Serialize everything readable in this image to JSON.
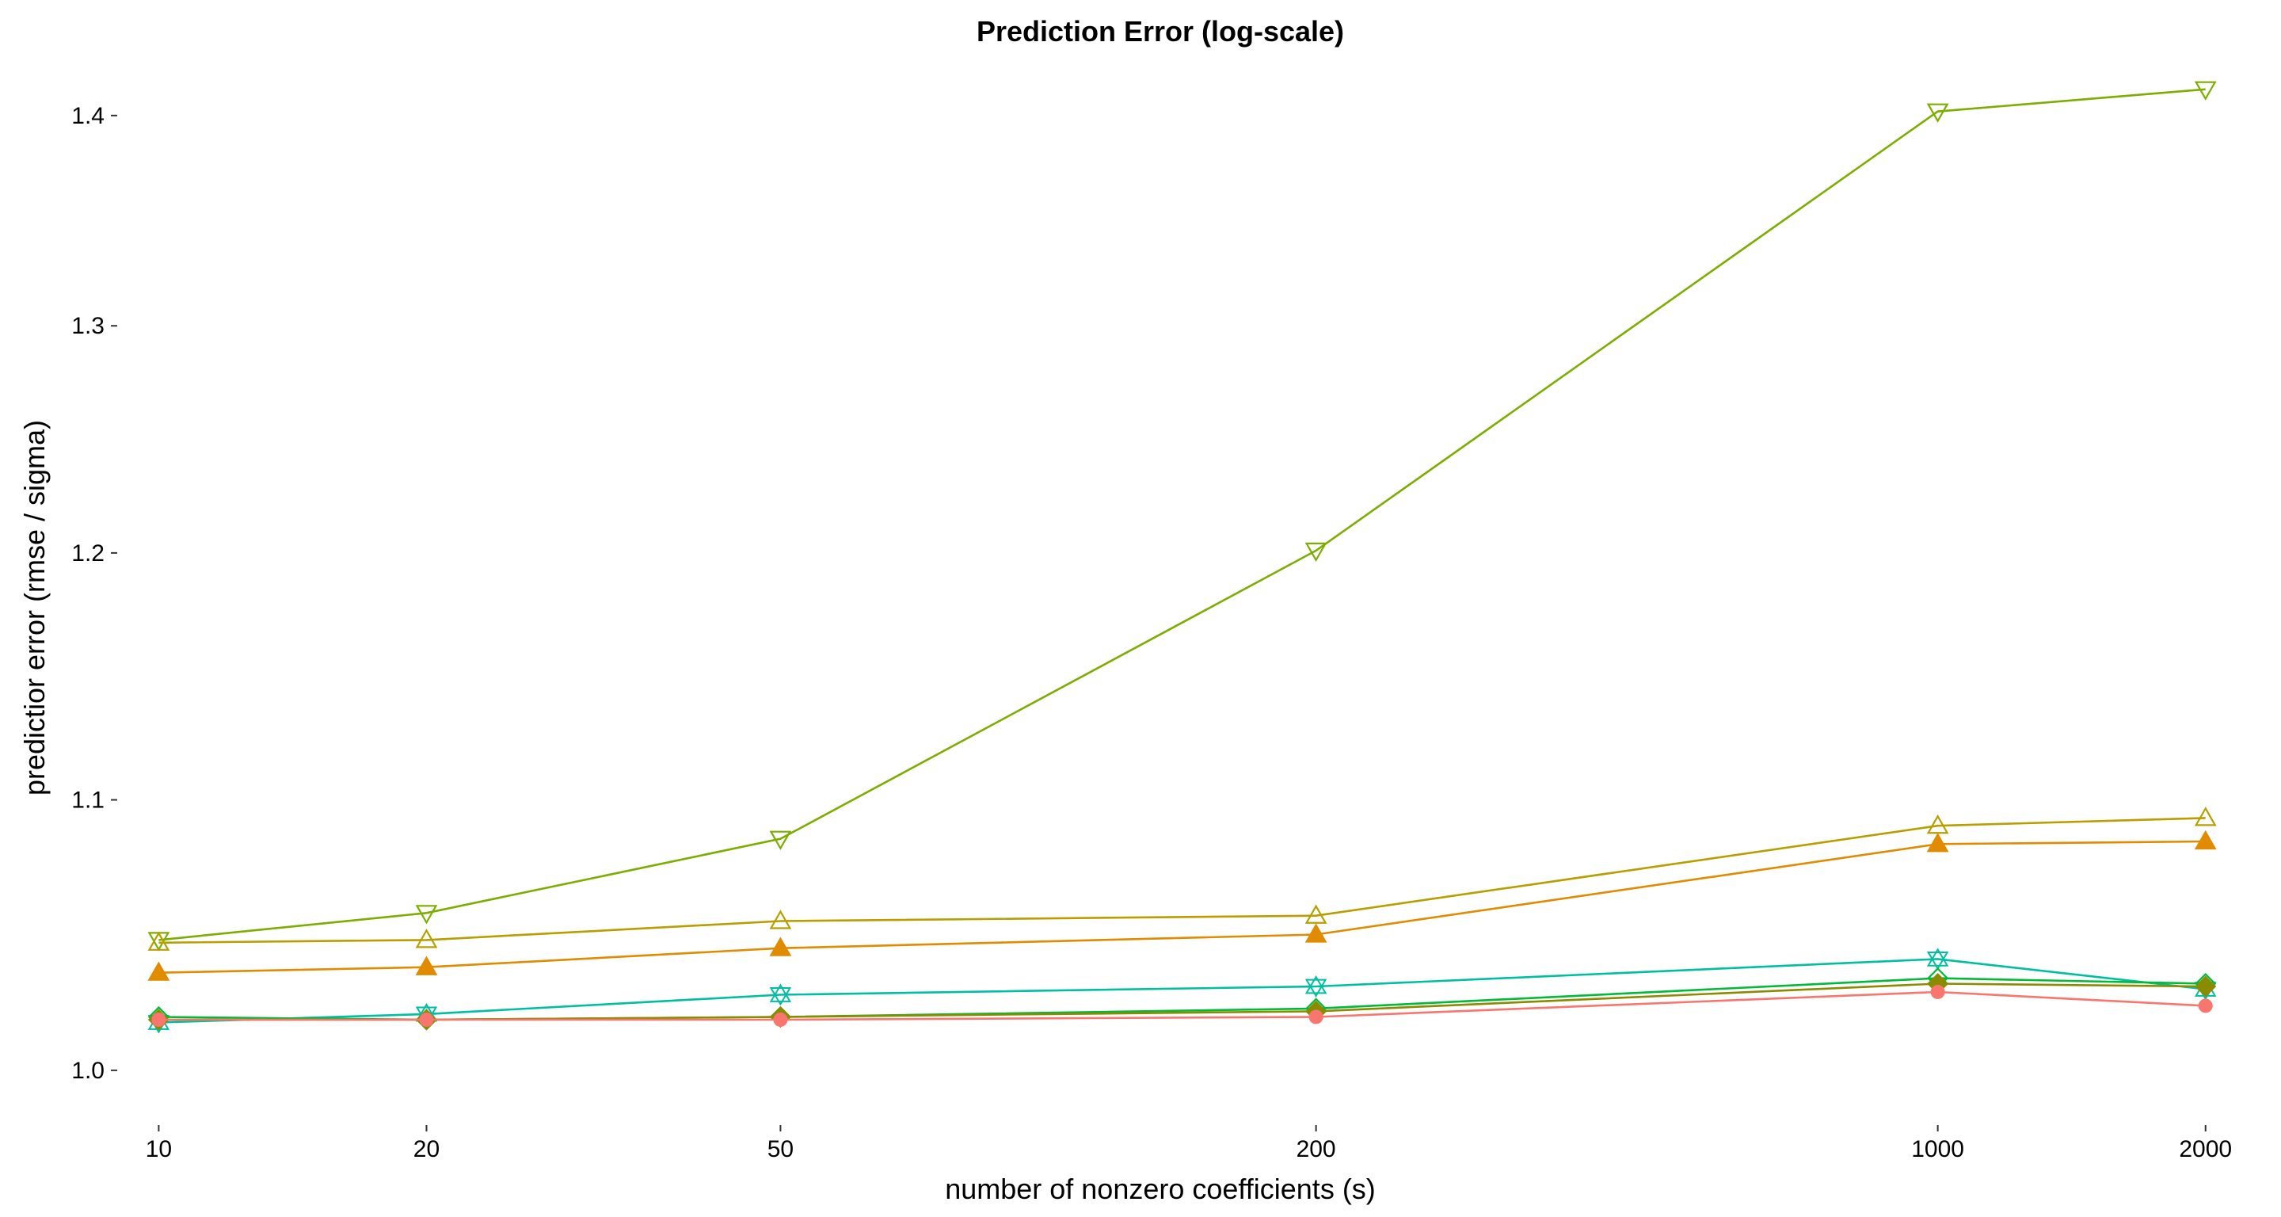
{
  "chart_data": {
    "type": "line",
    "title": "Prediction Error (log-scale)",
    "xlabel": "number of nonzero coefficients (s)",
    "ylabel": "predictior error (rmse / sigma)",
    "x_scale": "log",
    "y_scale": "log",
    "x": [
      10,
      20,
      50,
      200,
      1000,
      2000
    ],
    "x_tick_labels": [
      "10",
      "20",
      "50",
      "200",
      "1000",
      "2000"
    ],
    "y_ticks": [
      1.0,
      1.1,
      1.2,
      1.3,
      1.4
    ],
    "y_tick_labels": [
      "1.0",
      "1.1",
      "1.2",
      "1.3",
      "1.4"
    ],
    "ylim": [
      0.985,
      1.42
    ],
    "xlim": [
      9.3,
      2150
    ],
    "grid": false,
    "legend": "none",
    "series": [
      {
        "color": "#7CAE00",
        "marker": "triangle-down-open",
        "values": [
          1.047,
          1.057,
          1.085,
          1.201,
          1.402,
          1.413
        ]
      },
      {
        "color": "#B79F00",
        "marker": "triangle-up-open",
        "values": [
          1.046,
          1.047,
          1.054,
          1.056,
          1.09,
          1.093
        ]
      },
      {
        "color": "#E08B00",
        "marker": "triangle-up-filled",
        "values": [
          1.035,
          1.037,
          1.044,
          1.049,
          1.083,
          1.084
        ]
      },
      {
        "color": "#00BFA0",
        "marker": "star-of-david",
        "values": [
          1.017,
          1.02,
          1.027,
          1.03,
          1.04,
          1.029
        ]
      },
      {
        "color": "#00BA38",
        "marker": "diamond-open",
        "values": [
          1.019,
          1.018,
          1.019,
          1.022,
          1.033,
          1.031
        ]
      },
      {
        "color": "#8B8B00",
        "marker": "diamond-filled",
        "values": [
          1.018,
          1.018,
          1.019,
          1.021,
          1.031,
          1.03
        ]
      },
      {
        "color": "#F8766D",
        "marker": "circle-filled",
        "values": [
          1.018,
          1.018,
          1.018,
          1.019,
          1.028,
          1.023
        ]
      }
    ]
  }
}
